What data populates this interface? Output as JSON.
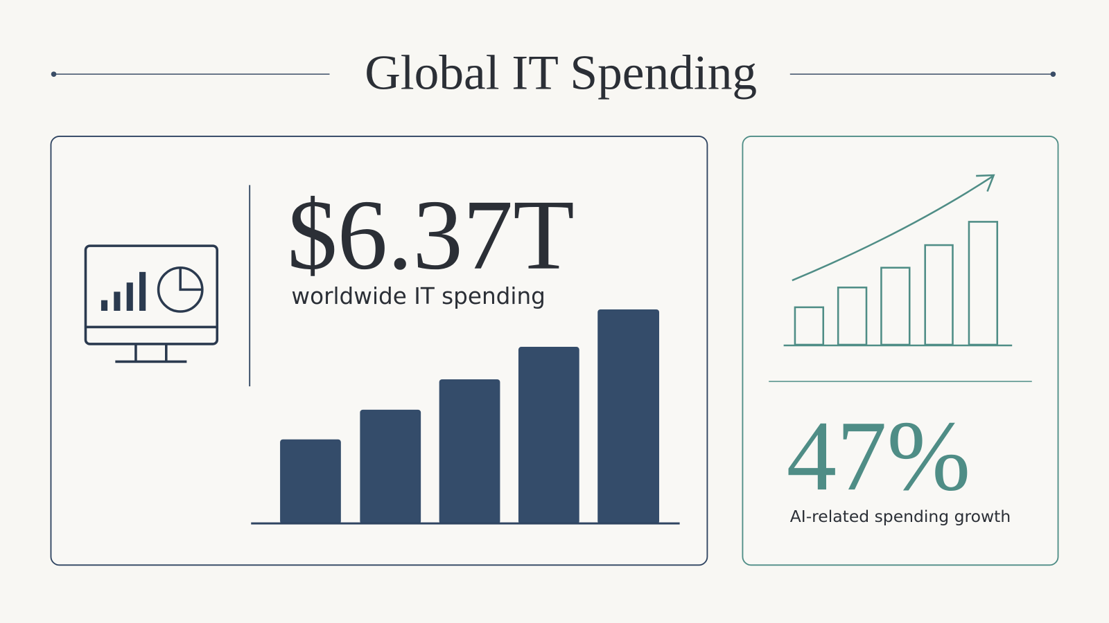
{
  "title": "Global IT Spending",
  "cards": [
    {
      "value": "$6.37T",
      "label": "worldwide IT spending"
    },
    {
      "value": "47%",
      "label": "AI-related spending growth"
    }
  ]
}
